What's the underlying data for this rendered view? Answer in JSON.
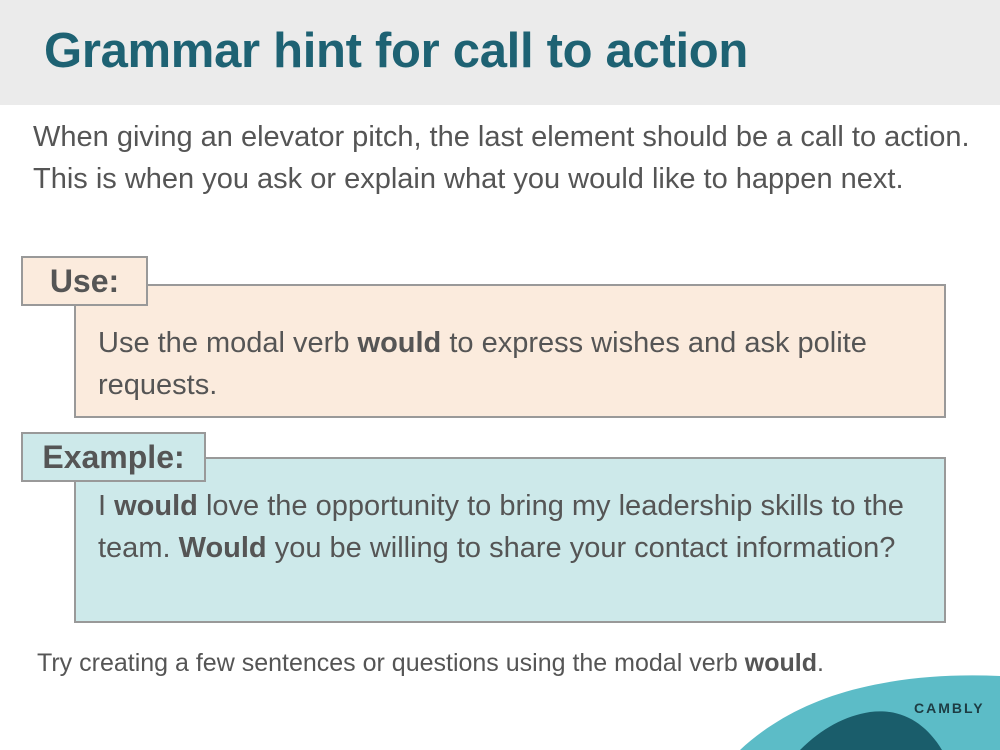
{
  "slide": {
    "title": "Grammar hint for call to action",
    "intro": "When giving an elevator pitch, the last element should be a call to action. This is when you ask or explain what you would like to happen next."
  },
  "use_section": {
    "tag": "Use:",
    "text_before": "Use the modal verb ",
    "text_bold": "would",
    "text_after": " to express wishes and ask polite requests."
  },
  "example_section": {
    "tag": "Example:",
    "part1": "I ",
    "bold1": "would",
    "part2": " love the opportunity to bring my leadership skills to the team. ",
    "bold2": "Would",
    "part3": " you be willing to share your contact information?"
  },
  "footer": {
    "note_before": "Try creating a few sentences or questions using the modal verb ",
    "note_bold": "would",
    "note_after": ".",
    "brand": "CAMBLY"
  },
  "colors": {
    "title": "#1e6273",
    "use_bg": "#fbebdd",
    "example_bg": "#cde9ea",
    "wave_light": "#5cbcc7",
    "wave_dark": "#1a5d6b"
  }
}
